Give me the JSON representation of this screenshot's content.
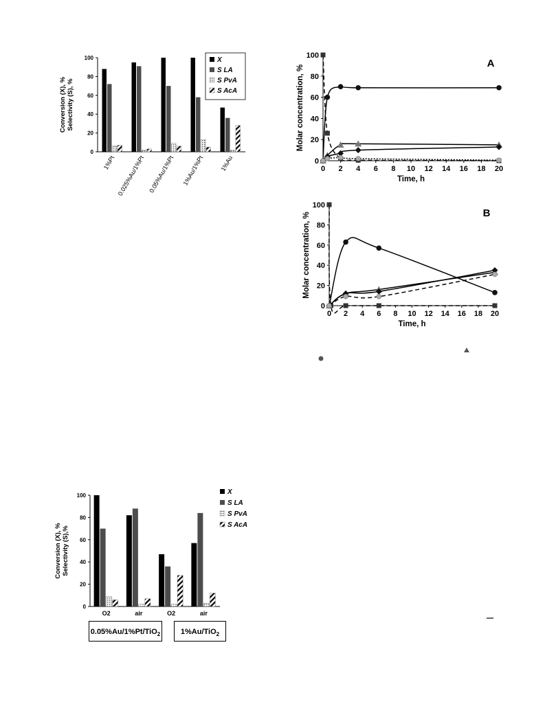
{
  "patterns": {
    "X": "solid-black",
    "LA": "solid-dark-gray",
    "PvA": "dotted-light",
    "AcA": "diagonal-hatch"
  },
  "colors": {
    "black": "#000000",
    "dark_gray": "#4d4d4d",
    "light": "#d9d9d9",
    "hatch": "#000000"
  },
  "chart_data": [
    {
      "type": "bar",
      "ylabel": "Conversion (X), %\nSelectivity (S),  %",
      "ylim": [
        0,
        100
      ],
      "yticks": [
        0,
        20,
        40,
        60,
        80,
        100
      ],
      "categories": [
        "1%Pt",
        "0.025%Au/1%Pt",
        "0.05%Au/1%Pt",
        "1%Au/1%Pt",
        "1%Au"
      ],
      "legend_position": "top-right",
      "series": [
        {
          "name": "X",
          "values": [
            88,
            95,
            100,
            100,
            47
          ]
        },
        {
          "name": "S LA",
          "values": [
            72,
            91,
            70,
            58,
            36
          ]
        },
        {
          "name": "S PvA",
          "values": [
            6,
            2,
            9,
            13,
            2
          ]
        },
        {
          "name": "S AcA",
          "values": [
            7,
            3,
            6,
            5,
            28
          ]
        }
      ]
    },
    {
      "type": "line",
      "panel_label": "A",
      "xlabel": "Time, h",
      "ylabel": "Molar concentration, %",
      "xlim": [
        0,
        20
      ],
      "ylim": [
        0,
        100
      ],
      "xticks": [
        0,
        2,
        4,
        6,
        8,
        10,
        12,
        14,
        16,
        18,
        20
      ],
      "yticks": [
        0,
        20,
        40,
        60,
        80,
        100
      ],
      "series": [
        {
          "marker": "square",
          "line": "dashed",
          "points": [
            [
              0,
              100
            ],
            [
              0.5,
              26
            ],
            [
              2,
              2
            ],
            [
              4,
              0.5
            ],
            [
              20,
              0
            ]
          ]
        },
        {
          "marker": "circle",
          "line": "solid",
          "points": [
            [
              0,
              0
            ],
            [
              0.5,
              60
            ],
            [
              2,
              70
            ],
            [
              4,
              69
            ],
            [
              20,
              69
            ]
          ]
        },
        {
          "marker": "triangle",
          "line": "solid",
          "points": [
            [
              0,
              0
            ],
            [
              0.5,
              5
            ],
            [
              2,
              15
            ],
            [
              4,
              16
            ],
            [
              20,
              15
            ]
          ]
        },
        {
          "marker": "diamond",
          "line": "solid",
          "points": [
            [
              0,
              0
            ],
            [
              0.5,
              4
            ],
            [
              2,
              7
            ],
            [
              4,
              10
            ],
            [
              20,
              13
            ]
          ]
        },
        {
          "marker": "circle-gray",
          "line": "dotted",
          "points": [
            [
              0,
              0
            ],
            [
              0.5,
              2
            ],
            [
              2,
              3
            ],
            [
              4,
              2
            ],
            [
              20,
              0.5
            ]
          ]
        }
      ]
    },
    {
      "type": "line",
      "panel_label": "B",
      "xlabel": "Time, h",
      "ylabel": "Molar concentration, %",
      "xlim": [
        0,
        20
      ],
      "ylim": [
        0,
        100
      ],
      "xticks": [
        0,
        2,
        4,
        6,
        8,
        10,
        12,
        14,
        16,
        18,
        20
      ],
      "yticks": [
        0,
        20,
        40,
        60,
        80,
        100
      ],
      "series": [
        {
          "marker": "square",
          "line": "dashed",
          "points": [
            [
              0,
              100
            ],
            [
              0.2,
              0
            ],
            [
              2,
              0
            ],
            [
              6,
              0
            ],
            [
              20,
              0
            ]
          ]
        },
        {
          "marker": "circle",
          "line": "solid",
          "points": [
            [
              0,
              0
            ],
            [
              2,
              63
            ],
            [
              6,
              57
            ],
            [
              20,
              13
            ]
          ]
        },
        {
          "marker": "triangle",
          "line": "solid",
          "points": [
            [
              0,
              0
            ],
            [
              2,
              12
            ],
            [
              6,
              16
            ],
            [
              20,
              33
            ]
          ]
        },
        {
          "marker": "diamond",
          "line": "solid",
          "points": [
            [
              0,
              0
            ],
            [
              2,
              12
            ],
            [
              6,
              14
            ],
            [
              20,
              35
            ]
          ]
        },
        {
          "marker": "circle-gray",
          "line": "dashed",
          "points": [
            [
              0,
              0
            ],
            [
              2,
              9
            ],
            [
              6,
              9
            ],
            [
              20,
              31
            ]
          ]
        }
      ]
    },
    {
      "type": "bar",
      "ylabel": "Conversion (X), %\nSelectivity (S),%",
      "ylim": [
        0,
        100
      ],
      "yticks": [
        0,
        20,
        40,
        60,
        80,
        100
      ],
      "categories": [
        "O2",
        "air",
        "O2",
        "air"
      ],
      "groups": [
        "0.05%Au/1%Pt/TiO2",
        "1%Au/TiO2"
      ],
      "legend_position": "top-right",
      "series": [
        {
          "name": "X",
          "values": [
            100,
            82,
            47,
            57
          ]
        },
        {
          "name": "S LA",
          "values": [
            70,
            88,
            36,
            84
          ]
        },
        {
          "name": "S PvA",
          "values": [
            9,
            2,
            2,
            3
          ]
        },
        {
          "name": "S AcA",
          "values": [
            6,
            7,
            28,
            12
          ]
        }
      ]
    }
  ],
  "legend_labels": {
    "x": "X",
    "la": "S LA",
    "pva": "S PvA",
    "aca": "S AcA"
  },
  "group_labels": [
    "0.05%Au/1%Pt/TiO",
    "2",
    "1%Au/TiO",
    "2"
  ],
  "panel_a_label": "A",
  "panel_b_label": "B"
}
